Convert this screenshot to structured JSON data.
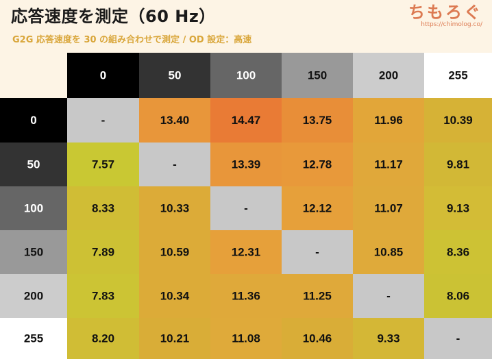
{
  "header": {
    "title": "応答速度を測定（60 Hz）",
    "subtitle": "G2G 応答速度を 30 の組み合わせで測定 / OD 設定：高速",
    "logo_text": "ちもろぐ",
    "logo_url": "https://chimolog.co/"
  },
  "chart_data": {
    "type": "heatmap",
    "columns": [
      "0",
      "50",
      "100",
      "150",
      "200",
      "255"
    ],
    "rows": [
      "0",
      "50",
      "100",
      "150",
      "200",
      "255"
    ],
    "values": [
      [
        "-",
        "13.40",
        "14.47",
        "13.75",
        "11.96",
        "10.39"
      ],
      [
        "7.57",
        "-",
        "13.39",
        "12.78",
        "11.17",
        "9.81"
      ],
      [
        "8.33",
        "10.33",
        "-",
        "12.12",
        "11.07",
        "9.13"
      ],
      [
        "7.89",
        "10.59",
        "12.31",
        "-",
        "10.85",
        "8.36"
      ],
      [
        "7.83",
        "10.34",
        "11.36",
        "11.25",
        "-",
        "8.06"
      ],
      [
        "8.20",
        "10.21",
        "11.08",
        "10.46",
        "9.33",
        "-"
      ]
    ],
    "header_colors": [
      "#000000",
      "#333333",
      "#666666",
      "#999999",
      "#cccccc",
      "#ffffff"
    ],
    "diagonal_color": "#c8c8c8",
    "cell_colors": [
      [
        "#c8c8c8",
        "#e8963a",
        "#e97b35",
        "#e88e38",
        "#e2a639",
        "#d6b236"
      ],
      [
        "#c9c833",
        "#c8c8c8",
        "#e8963a",
        "#e8993a",
        "#e0a83a",
        "#d2b836"
      ],
      [
        "#d0bd35",
        "#dcab38",
        "#c8c8c8",
        "#e6a03a",
        "#dfa93a",
        "#d3bc36"
      ],
      [
        "#cdc134",
        "#dcab38",
        "#e6a03a",
        "#c8c8c8",
        "#dfaa3a",
        "#cdc234"
      ],
      [
        "#ccc434",
        "#dcab38",
        "#dfa93a",
        "#dfa93a",
        "#c8c8c8",
        "#cbc234"
      ],
      [
        "#d0bd35",
        "#d9ad37",
        "#dfaa3a",
        "#d9ad37",
        "#d4b736",
        "#c8c8c8"
      ]
    ]
  }
}
